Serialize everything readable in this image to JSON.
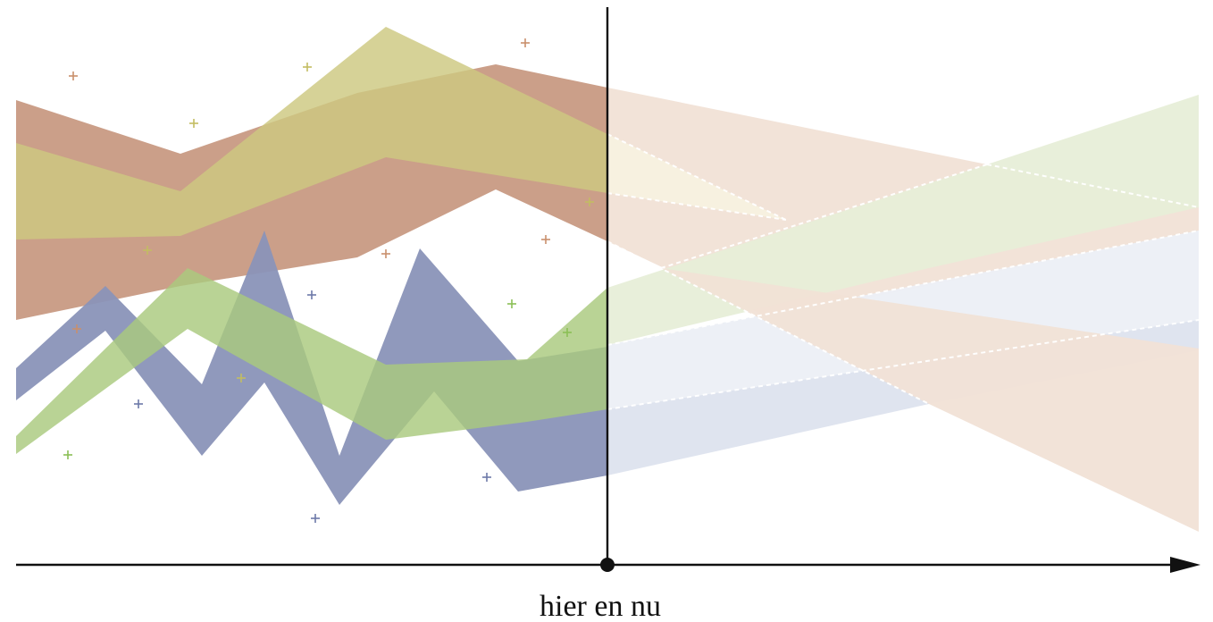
{
  "now_label": "hier en nu",
  "colors": {
    "brown": "#c89a83",
    "olive": "#cdc880",
    "blue": "#8a94b8",
    "green": "#a9c97e",
    "brown_future": "#f1e2d6",
    "green_future": "#e7eed8",
    "blue_future": "#e5e8f1",
    "axis": "#111111"
  },
  "icons": {
    "marker": "plus-marker-icon",
    "axis_end": "arrow-right-icon",
    "now_point": "dot-icon"
  }
}
